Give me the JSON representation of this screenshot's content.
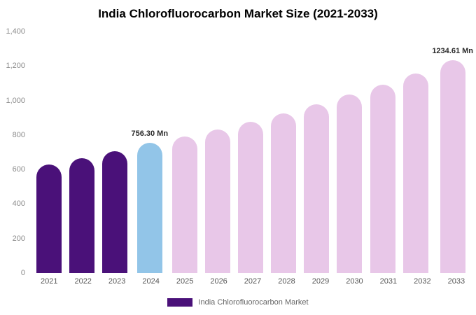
{
  "chart_data": {
    "type": "bar",
    "title": "India Chlorofluorocarbon Market Size (2021-2033)",
    "categories": [
      "2021",
      "2022",
      "2023",
      "2024",
      "2025",
      "2026",
      "2027",
      "2028",
      "2029",
      "2030",
      "2031",
      "2032",
      "2033"
    ],
    "values": [
      630,
      665,
      705,
      756.3,
      790,
      830,
      875,
      925,
      980,
      1035,
      1090,
      1155,
      1234.61
    ],
    "unit": "Mn",
    "ylim": [
      0,
      1400
    ],
    "yticks": [
      {
        "value": 0,
        "label": "0"
      },
      {
        "value": 200,
        "label": "200"
      },
      {
        "value": 400,
        "label": "400"
      },
      {
        "value": 600,
        "label": "600"
      },
      {
        "value": 800,
        "label": "800"
      },
      {
        "value": 1000,
        "label": "1,000"
      },
      {
        "value": 1200,
        "label": "1,200"
      },
      {
        "value": 1400,
        "label": "1,400"
      }
    ],
    "grid": false,
    "annotations": [
      {
        "index": 3,
        "text": "756.30 Mn"
      },
      {
        "index": 12,
        "text": "1234.61 Mn"
      }
    ],
    "colors": {
      "historical": "#4a1179",
      "highlight": "#92c5e8",
      "forecast": "#e8c7e8"
    },
    "bar_styles": [
      "historical",
      "historical",
      "historical",
      "highlight",
      "forecast",
      "forecast",
      "forecast",
      "forecast",
      "forecast",
      "forecast",
      "forecast",
      "forecast",
      "forecast"
    ],
    "legend": [
      {
        "label": "India Chlorofluorocarbon Market",
        "color": "#4a1179"
      }
    ],
    "legend_position": "bottom"
  }
}
